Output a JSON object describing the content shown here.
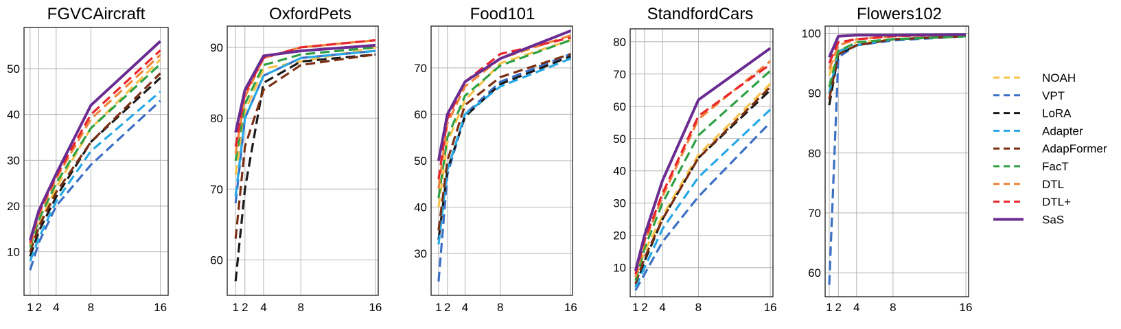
{
  "chart_data": [
    {
      "type": "line",
      "title": "FGVCAircraft",
      "x": [
        1,
        2,
        4,
        8,
        16
      ],
      "xlim": [
        0.3,
        16.9
      ],
      "ylim": [
        0.5,
        59
      ],
      "yticks": [
        10,
        20,
        30,
        40,
        50
      ],
      "xticks": [
        1,
        2,
        4,
        8,
        16
      ],
      "series": [
        {
          "name": "NOAH",
          "values": [
            10,
            16,
            24,
            37,
            52
          ]
        },
        {
          "name": "VPT",
          "values": [
            6,
            12,
            20,
            29,
            43
          ]
        },
        {
          "name": "LoRA",
          "values": [
            9,
            14.5,
            22,
            34,
            48
          ]
        },
        {
          "name": "Adapter",
          "values": [
            8,
            13,
            21,
            32,
            45
          ]
        },
        {
          "name": "AdapFormer",
          "values": [
            10,
            15.5,
            23,
            34,
            49
          ]
        },
        {
          "name": "FacT",
          "values": [
            11,
            17,
            25,
            37,
            51
          ]
        },
        {
          "name": "DTL",
          "values": [
            11.5,
            18,
            26,
            39,
            53
          ]
        },
        {
          "name": "DTL+",
          "values": [
            12,
            18.5,
            26.5,
            40,
            54
          ]
        },
        {
          "name": "SaS",
          "values": [
            12.5,
            19,
            27,
            42,
            56
          ]
        }
      ]
    },
    {
      "type": "line",
      "title": "OxfordPets",
      "x": [
        1,
        2,
        4,
        8,
        16
      ],
      "xlim": [
        0.1,
        16.3
      ],
      "ylim": [
        55,
        93
      ],
      "yticks": [
        60,
        70,
        80,
        90
      ],
      "xticks": [
        1,
        2,
        4,
        8,
        16
      ],
      "series": [
        {
          "name": "NOAH",
          "values": [
            72,
            81,
            87,
            88,
            90
          ]
        },
        {
          "name": "VPT",
          "values": [
            68,
            80,
            86,
            88.5,
            89.5
          ]
        },
        {
          "name": "LoRA",
          "values": [
            57,
            70,
            85,
            88,
            89
          ]
        },
        {
          "name": "Adapter",
          "values": [
            69,
            80,
            86,
            88.5,
            89.5
          ]
        },
        {
          "name": "AdapFormer",
          "values": [
            63,
            76,
            84,
            87.5,
            89
          ]
        },
        {
          "name": "FacT",
          "values": [
            74,
            82,
            87.5,
            89,
            90
          ]
        },
        {
          "name": "DTL",
          "values": [
            75,
            83,
            88.5,
            90,
            91
          ]
        },
        {
          "name": "DTL+",
          "values": [
            76,
            83.5,
            88.5,
            90,
            91
          ]
        },
        {
          "name": "SaS",
          "values": [
            78,
            84,
            88.8,
            89.5,
            90.3
          ]
        }
      ]
    },
    {
      "type": "line",
      "title": "Food101",
      "x": [
        1,
        2,
        4,
        8,
        16
      ],
      "xlim": [
        0.15,
        16.2
      ],
      "ylim": [
        21,
        79
      ],
      "yticks": [
        30,
        40,
        50,
        60,
        70
      ],
      "xticks": [
        1,
        2,
        4,
        8,
        16
      ],
      "series": [
        {
          "name": "NOAH",
          "values": [
            40,
            54,
            63,
            71,
            76
          ]
        },
        {
          "name": "VPT",
          "values": [
            24,
            47,
            60,
            67,
            73
          ]
        },
        {
          "name": "LoRA",
          "values": [
            33,
            48,
            59.5,
            66.5,
            72.5
          ]
        },
        {
          "name": "Adapter",
          "values": [
            32,
            48,
            60,
            66,
            72
          ]
        },
        {
          "name": "AdapFormer",
          "values": [
            35,
            50,
            62,
            68,
            73
          ]
        },
        {
          "name": "FacT",
          "values": [
            42,
            55,
            64,
            70.5,
            76
          ]
        },
        {
          "name": "DTL",
          "values": [
            44,
            58,
            66,
            72,
            77
          ]
        },
        {
          "name": "DTL+",
          "values": [
            46,
            59,
            67,
            73,
            76.5
          ]
        },
        {
          "name": "SaS",
          "values": [
            50,
            60,
            67,
            72,
            78
          ]
        }
      ]
    },
    {
      "type": "line",
      "title": "StandfordCars",
      "x": [
        1,
        2,
        4,
        8,
        16
      ],
      "xlim": [
        0.4,
        16.3
      ],
      "ylim": [
        1,
        84
      ],
      "yticks": [
        10,
        20,
        30,
        40,
        50,
        60,
        70,
        80
      ],
      "xticks": [
        1,
        2,
        4,
        8,
        16
      ],
      "series": [
        {
          "name": "NOAH",
          "values": [
            7,
            15,
            26,
            45,
            67
          ]
        },
        {
          "name": "VPT",
          "values": [
            3,
            8,
            18,
            32,
            55
          ]
        },
        {
          "name": "LoRA",
          "values": [
            4,
            12,
            25,
            44,
            65
          ]
        },
        {
          "name": "Adapter",
          "values": [
            4,
            10,
            22,
            38,
            59
          ]
        },
        {
          "name": "AdapFormer",
          "values": [
            5,
            13,
            25,
            44,
            66
          ]
        },
        {
          "name": "FacT",
          "values": [
            6,
            16,
            30,
            51,
            71
          ]
        },
        {
          "name": "DTL",
          "values": [
            7,
            18,
            32,
            56,
            74
          ]
        },
        {
          "name": "DTL+",
          "values": [
            8,
            18.5,
            33,
            57,
            73
          ]
        },
        {
          "name": "SaS",
          "values": [
            9,
            20,
            37,
            62,
            78
          ]
        }
      ]
    },
    {
      "type": "line",
      "title": "Flowers102",
      "x": [
        1,
        2,
        4,
        8,
        16
      ],
      "xlim": [
        0.55,
        16.3
      ],
      "ylim": [
        56,
        101.2
      ],
      "yticks": [
        60,
        70,
        80,
        90,
        100
      ],
      "xticks": [
        1,
        2,
        4,
        8,
        16
      ],
      "series": [
        {
          "name": "NOAH",
          "values": [
            93,
            97,
            98.5,
            99,
            99.5
          ]
        },
        {
          "name": "VPT",
          "values": [
            58,
            96,
            98,
            98.8,
            99.5
          ]
        },
        {
          "name": "LoRA",
          "values": [
            88,
            96.5,
            98,
            99,
            99.5
          ]
        },
        {
          "name": "Adapter",
          "values": [
            90,
            97,
            98,
            99,
            99.5
          ]
        },
        {
          "name": "AdapFormer",
          "values": [
            89,
            96.5,
            98,
            99,
            99.5
          ]
        },
        {
          "name": "FacT",
          "values": [
            91,
            97,
            98.5,
            99,
            99.5
          ]
        },
        {
          "name": "DTL",
          "values": [
            94,
            98,
            99,
            99.5,
            99.8
          ]
        },
        {
          "name": "DTL+",
          "values": [
            95,
            98.5,
            99,
            99.5,
            99.8
          ]
        },
        {
          "name": "SaS",
          "values": [
            96,
            99.5,
            99.7,
            99.7,
            99.8
          ]
        }
      ]
    }
  ],
  "legend": {
    "placement": "right",
    "items": [
      {
        "name": "NOAH",
        "color": "#f7c34a",
        "style": "dashed"
      },
      {
        "name": "VPT",
        "color": "#3a6fc4",
        "style": "dashed"
      },
      {
        "name": "LoRA",
        "color": "#1a1a1a",
        "style": "dashed"
      },
      {
        "name": "Adapter",
        "color": "#26a8e6",
        "style": "dashed"
      },
      {
        "name": "AdapFormer",
        "color": "#7a2f12",
        "style": "dashed"
      },
      {
        "name": "FacT",
        "color": "#2ea043",
        "style": "dashed"
      },
      {
        "name": "DTL",
        "color": "#f08338",
        "style": "dashed"
      },
      {
        "name": "DTL+",
        "color": "#e8242c",
        "style": "dashed"
      },
      {
        "name": "SaS",
        "color": "#6a2c91",
        "style": "solid"
      }
    ]
  }
}
